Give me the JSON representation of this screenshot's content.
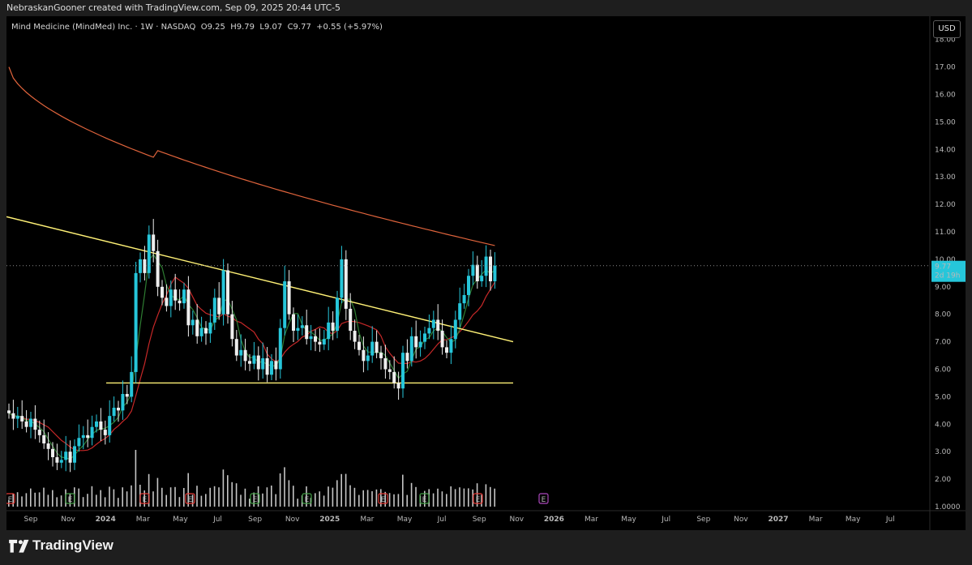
{
  "caption": "NebraskanGooner created with TradingView.com, Sep 09, 2025 20:44 UTC-5",
  "legend": {
    "symbol": "Mind Medicine (MindMed) Inc. · 1W · NASDAQ",
    "o_label": "O",
    "o": "9.25",
    "h_label": "H",
    "h": "9.79",
    "l_label": "L",
    "l": "9.07",
    "c_label": "C",
    "c": "9.77",
    "change": "+0.55 (+5.97%)"
  },
  "currency": "USD",
  "price_tag": {
    "price": "9.77",
    "countdown": "2d 19h"
  },
  "brand": "TradingView",
  "colors": {
    "up": "#26c6da",
    "down": "#eeeeee",
    "volume": "#e8e8e8",
    "ma_long": "#e0643c",
    "ma_mid": "#c62828",
    "ma_fast": "#2e7d32",
    "trendline": "#fff176",
    "tag": "#26c6da",
    "earnings_red": "#e53935",
    "earnings_green": "#43a047",
    "earnings_future": "#ab47bc"
  },
  "chart_data": {
    "type": "candlestick",
    "interval": "1W",
    "yaxis_labels": [
      "1.0000",
      "2.00",
      "3.00",
      "4.00",
      "5.00",
      "6.00",
      "7.00",
      "8.00",
      "9.00",
      "10.00",
      "11.00",
      "12.00",
      "13.00",
      "14.00",
      "15.00",
      "16.00",
      "17.00",
      "18.00"
    ],
    "ylim": [
      1,
      18
    ],
    "xaxis_labels": [
      "Sep",
      "Nov",
      "2024",
      "Mar",
      "May",
      "Jul",
      "Sep",
      "Nov",
      "2025",
      "Mar",
      "May",
      "Jul",
      "Sep",
      "Nov",
      "2026",
      "Mar",
      "May",
      "Jul",
      "Sep",
      "Nov",
      "2027",
      "Mar",
      "May",
      "Jul"
    ],
    "candles_close": [
      4.4,
      4.2,
      4.3,
      4.1,
      3.9,
      4.2,
      3.8,
      3.6,
      3.3,
      3.1,
      2.8,
      2.6,
      2.7,
      3.0,
      2.6,
      3.2,
      3.5,
      3.6,
      3.5,
      3.9,
      4.1,
      3.8,
      3.6,
      4.3,
      4.6,
      4.5,
      5.1,
      5.0,
      5.9,
      9.5,
      10.0,
      9.5,
      10.9,
      10.3,
      9.0,
      8.6,
      8.3,
      8.9,
      8.5,
      8.4,
      8.9,
      7.6,
      7.8,
      7.2,
      7.5,
      7.3,
      7.7,
      8.6,
      8.0,
      9.6,
      8.0,
      7.1,
      6.5,
      6.7,
      6.3,
      6.2,
      6.5,
      6.0,
      6.4,
      5.8,
      6.3,
      6.0,
      7.5,
      9.2,
      8.0,
      7.4,
      7.5,
      7.6,
      7.1,
      7.2,
      7.0,
      6.9,
      7.1,
      7.7,
      7.4,
      8.6,
      10.0,
      8.2,
      7.4,
      7.0,
      6.7,
      6.3,
      6.5,
      7.0,
      6.6,
      6.4,
      6.0,
      5.9,
      5.5,
      5.3,
      6.6,
      6.3,
      7.2,
      6.8,
      7.0,
      7.3,
      7.5,
      7.8,
      7.4,
      6.8,
      6.6,
      7.1,
      7.8,
      8.4,
      8.7,
      9.4,
      9.8,
      9.2,
      9.4,
      10.1,
      9.2,
      9.77
    ],
    "trendline_descending": {
      "x": [
        "2023-08",
        "2025-11"
      ],
      "y": [
        11.55,
        7.0
      ]
    },
    "horizontal_support": 5.5,
    "current_price": 9.77
  }
}
